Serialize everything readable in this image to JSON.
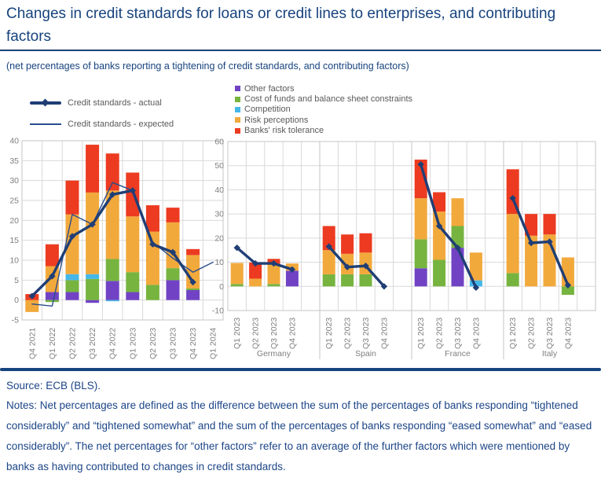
{
  "header": {
    "title": "Changes in credit standards for loans or credit lines to enterprises, and contributing factors",
    "subtitle": "(net percentages of banks reporting a tightening of credit standards, and contributing factors)"
  },
  "colors": {
    "navy_text": "#17437E",
    "actual_line": "#203E75",
    "expected_line": "#2B4E8C",
    "purple": "#7143C4",
    "green": "#76B43F",
    "cyan": "#44B7E8",
    "orange": "#F2A93C",
    "red": "#EC3B21",
    "grid": "#D9D9D9",
    "border": "#C6C6C6",
    "tick_text": "#7F7F7F",
    "legend_text": "#595959"
  },
  "legend_lines": [
    {
      "label": "Credit standards - actual",
      "style": "thick"
    },
    {
      "label": "Credit standards - expected",
      "style": "thin"
    }
  ],
  "legend_factors": [
    {
      "label": "Other factors",
      "color": "purple"
    },
    {
      "label": "Cost of funds and balance sheet constraints",
      "color": "green"
    },
    {
      "label": "Competition",
      "color": "cyan"
    },
    {
      "label": "Risk perceptions",
      "color": "orange"
    },
    {
      "label": "Banks' risk tolerance",
      "color": "red"
    }
  ],
  "chart_data": [
    {
      "id": "euro-area",
      "type": "bar",
      "stacked": true,
      "grid": true,
      "ylim": [
        -5,
        40
      ],
      "ytick": 5,
      "categories": [
        "Q4 2021",
        "Q1 2022",
        "Q2 2022",
        "Q3 2022",
        "Q4 2022",
        "Q1 2023",
        "Q2 2023",
        "Q3 2023",
        "Q4 2023",
        "Q1 2024"
      ],
      "series": [
        {
          "name": "Other factors",
          "color": "purple",
          "values": [
            0,
            2,
            2,
            -0.7,
            4.8,
            2,
            0,
            5,
            2.5,
            null
          ]
        },
        {
          "name": "Cost of funds and balance sheet constraints",
          "color": "green",
          "values": [
            0,
            -0.5,
            3,
            5.3,
            5.5,
            5,
            3.8,
            3,
            0.4,
            null
          ]
        },
        {
          "name": "Competition",
          "color": "cyan",
          "values": [
            0,
            0,
            1.5,
            1.2,
            -0.3,
            0,
            0,
            0,
            0,
            null
          ]
        },
        {
          "name": "Risk perceptions",
          "color": "orange",
          "values": [
            -3,
            6.5,
            15,
            20.5,
            17.2,
            14,
            13.4,
            11.5,
            8.4,
            null
          ]
        },
        {
          "name": "Banks' risk tolerance",
          "color": "red",
          "values": [
            1.5,
            5.5,
            8.5,
            12,
            9.3,
            11,
            6.6,
            3.7,
            1.5,
            null
          ]
        }
      ],
      "lines": [
        {
          "name": "Credit standards - actual",
          "style": "thick",
          "values": [
            1,
            6,
            16,
            19,
            26.5,
            27.5,
            14,
            12,
            4.5,
            null
          ]
        },
        {
          "name": "Credit standards - expected",
          "style": "thin",
          "values": [
            -1,
            -1.5,
            21.5,
            19,
            29.5,
            27.5,
            14.5,
            10.5,
            7,
            9.5
          ]
        }
      ]
    },
    {
      "id": "countries",
      "type": "bar",
      "stacked": true,
      "grid": true,
      "ylim": [
        -10,
        60
      ],
      "ytick": 10,
      "groups": [
        "Germany",
        "Spain",
        "France",
        "Italy"
      ],
      "categories": [
        "Q1 2023",
        "Q2 2023",
        "Q3 2023",
        "Q4 2023"
      ],
      "series": [
        {
          "name": "Other factors",
          "color": "purple",
          "values": [
            [
              0,
              0,
              0,
              6.5
            ],
            [
              0,
              0,
              0,
              0
            ],
            [
              7.5,
              0,
              16,
              0
            ],
            [
              0,
              0,
              0,
              0
            ]
          ]
        },
        {
          "name": "Cost of funds and balance sheet constraints",
          "color": "green",
          "values": [
            [
              1,
              0,
              1,
              0
            ],
            [
              5,
              5,
              5,
              0
            ],
            [
              12,
              11,
              9,
              0
            ],
            [
              5.5,
              0,
              0,
              -3.5
            ]
          ]
        },
        {
          "name": "Competition",
          "color": "cyan",
          "values": [
            [
              0,
              0,
              0,
              0
            ],
            [
              0,
              0,
              0,
              0
            ],
            [
              0,
              0,
              0,
              2.5
            ],
            [
              0,
              0,
              0,
              0
            ]
          ]
        },
        {
          "name": "Risk perceptions",
          "color": "orange",
          "values": [
            [
              8.7,
              3.2,
              8.2,
              3
            ],
            [
              10,
              8.5,
              9,
              0
            ],
            [
              17,
              20,
              11.5,
              11.5
            ],
            [
              24.5,
              21,
              21.5,
              12
            ]
          ]
        },
        {
          "name": "Banks' risk tolerance",
          "color": "red",
          "values": [
            [
              0,
              6.7,
              2.2,
              0
            ],
            [
              10,
              8,
              8,
              0
            ],
            [
              16,
              8,
              0,
              0
            ],
            [
              18.5,
              9,
              8.5,
              0
            ]
          ]
        }
      ],
      "lines": [
        {
          "name": "Credit standards - actual",
          "style": "thick",
          "values": [
            [
              16,
              9.5,
              9.5,
              7
            ],
            [
              16.5,
              8,
              8.5,
              0
            ],
            [
              50.5,
              25,
              16,
              -0.5
            ],
            [
              36.5,
              18,
              18.5,
              0.5
            ]
          ]
        }
      ]
    }
  ],
  "footer": {
    "source": "Source: ECB (BLS).",
    "notes": "Notes: Net percentages are defined as the difference between the sum of the percentages of banks responding “tightened considerably” and “tightened somewhat” and the sum of the percentages of banks responding “eased somewhat” and “eased considerably”. The net percentages for “other factors” refer to an average of the further factors which were mentioned by banks as having contributed to changes in credit standards."
  }
}
